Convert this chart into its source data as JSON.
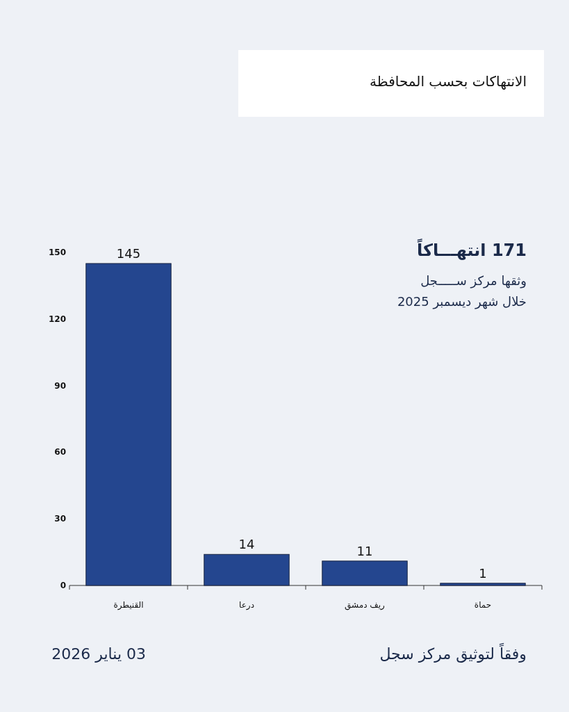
{
  "chart_data": {
    "type": "bar",
    "title": "الانتهاكات بحسب المحافظة",
    "categories": [
      "القنيطرة",
      "درعا",
      "ريف دمشق",
      "حماة"
    ],
    "values": [
      145,
      14,
      11,
      1
    ],
    "color": "#24468f",
    "ylim": [
      0,
      150
    ],
    "yticks": [
      0,
      30,
      60,
      90,
      120,
      150
    ],
    "data_labels": true,
    "grid": false,
    "annotations": [
      "171 انتهـــاكاً",
      "وثقها مركز ســـــجل",
      "خلال شهر ديسمبر 2025",
      "وفقاً لتوثيق مركز سجل",
      "03 يناير 2026"
    ]
  }
}
